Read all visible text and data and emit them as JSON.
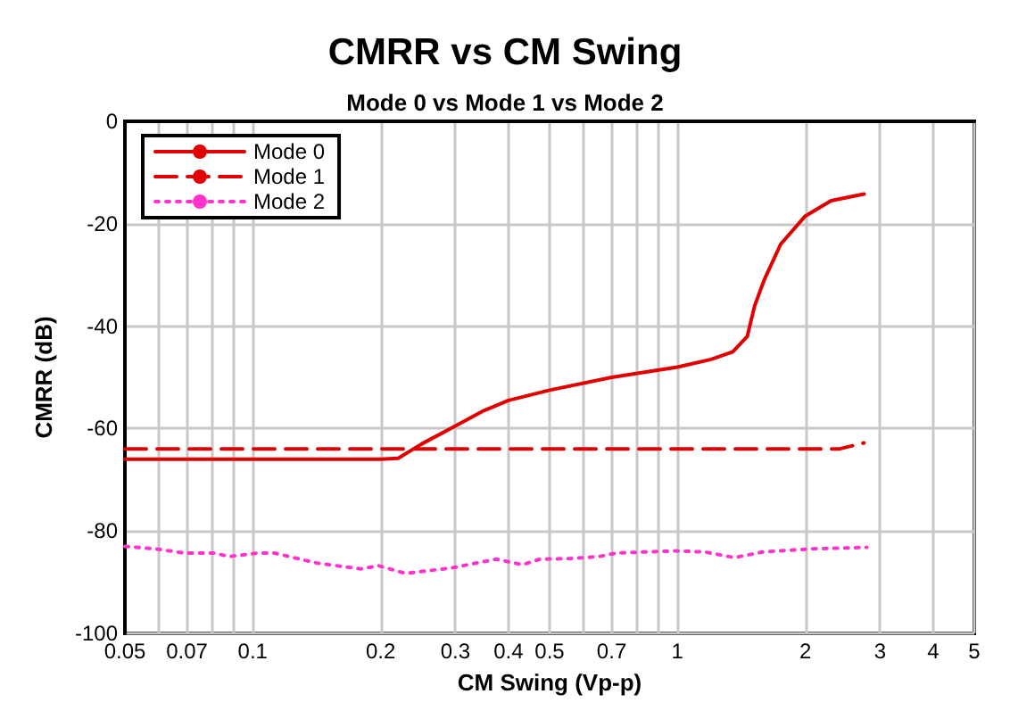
{
  "chart_data": {
    "type": "line",
    "title": "CMRR vs CM Swing",
    "subtitle": "Mode 0 vs Mode 1 vs Mode 2",
    "xlabel": "CM Swing (Vp-p)",
    "ylabel": "CMRR (dB)",
    "log": "x",
    "xlim": [
      0.05,
      5
    ],
    "ylim": [
      -100,
      0
    ],
    "xticks": [
      0.05,
      {
        "value": 0.06,
        "label": null
      },
      0.07,
      {
        "value": 0.08,
        "label": null
      },
      {
        "value": 0.09,
        "label": null
      },
      0.1,
      0.2,
      0.3,
      0.4,
      0.5,
      {
        "value": 0.6,
        "label": null
      },
      0.7,
      {
        "value": 0.8,
        "label": null
      },
      {
        "value": 0.9,
        "label": null
      },
      1,
      2,
      3,
      4,
      5
    ],
    "yticks": [
      -100,
      -80,
      -60,
      -40,
      -20,
      0
    ],
    "grid": true,
    "legend": "top left",
    "marker": "none",
    "series": [
      {
        "name": "Mode 0",
        "color": "#e00000",
        "line_style": "solid",
        "x": [
          0.05,
          0.1,
          0.15,
          0.2,
          0.22,
          0.25,
          0.3,
          0.35,
          0.4,
          0.5,
          0.7,
          1,
          1.2,
          1.35,
          1.46,
          1.52,
          1.6,
          1.75,
          2,
          2.3,
          2.75
        ],
        "values": [
          -66,
          -66,
          -66,
          -66,
          -65.8,
          -63,
          -59.5,
          -56.5,
          -54.5,
          -52.5,
          -50,
          -48,
          -46.5,
          -45,
          -42,
          -36,
          -31,
          -24,
          -18.5,
          -15.5,
          -14.2
        ]
      },
      {
        "name": "Mode 1",
        "color": "#e00000",
        "line_style": "dashed",
        "x": [
          0.05,
          0.1,
          0.5,
          1,
          2,
          2.4,
          2.75
        ],
        "values": [
          -64,
          -64,
          -64,
          -64,
          -64,
          -64,
          -62.8
        ]
      },
      {
        "name": "Mode 2",
        "color": "#ff33cc",
        "line_style": "dotted",
        "x": [
          0.05,
          0.059,
          0.069,
          0.081,
          0.088,
          0.103,
          0.112,
          0.142,
          0.18,
          0.198,
          0.229,
          0.295,
          0.374,
          0.432,
          0.475,
          0.557,
          0.653,
          0.719,
          0.987,
          1.16,
          1.36,
          1.59,
          2.06,
          2.79
        ],
        "values": [
          -83,
          -83.5,
          -84.3,
          -84.3,
          -85,
          -84.3,
          -84.3,
          -86.3,
          -87.4,
          -86.8,
          -88.3,
          -87.2,
          -85.5,
          -86.6,
          -85.5,
          -85.4,
          -85,
          -84.3,
          -83.9,
          -84.1,
          -85.2,
          -84.1,
          -83.5,
          -83.2
        ]
      }
    ]
  }
}
